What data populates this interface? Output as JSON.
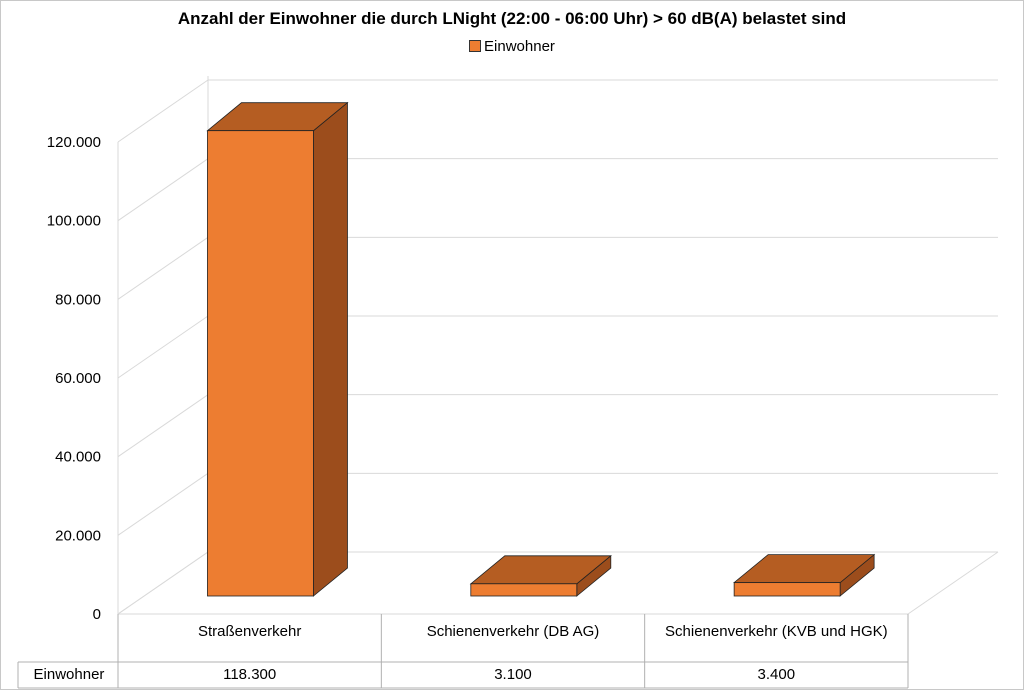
{
  "chart_data": {
    "type": "bar",
    "title": "Anzahl der Einwohner die durch LNight (22:00 - 06:00 Uhr) > 60 dB(A) belastet sind",
    "categories": [
      "Straßenverkehr",
      "Schienenverkehr (DB AG)",
      "Schienenverkehr (KVB und HGK)"
    ],
    "series": [
      {
        "name": "Einwohner",
        "values": [
          118300,
          3100,
          3400
        ],
        "color": "#ed7d31",
        "color_top": "#b55d22",
        "color_side": "#9c4d1c"
      }
    ],
    "data_table": {
      "row_label": "Einwohner",
      "values": [
        "118.300",
        "3.100",
        "3.400"
      ]
    },
    "y_ticks": [
      "0",
      "20.000",
      "40.000",
      "60.000",
      "80.000",
      "100.000",
      "120.000"
    ],
    "ylim": [
      0,
      120000
    ],
    "grid": true,
    "legend_position": "top",
    "style": "3d-column"
  }
}
